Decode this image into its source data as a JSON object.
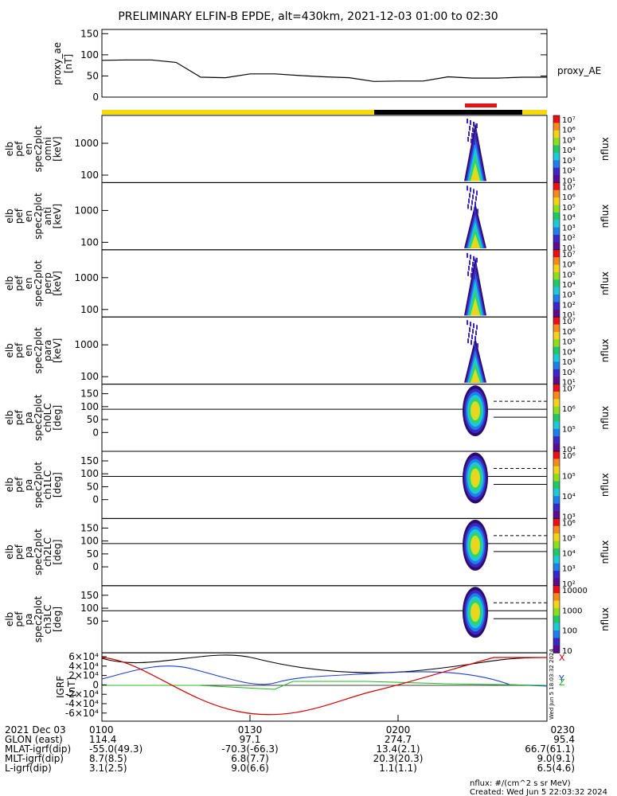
{
  "title": "PRELIMINARY ELFIN-B EPDE, alt=430km, 2021-12-03 01:00 to 02:30",
  "top_panel": {
    "ylabel_lines": [
      "proxy_ae",
      "[nT]"
    ],
    "series_label": "proxy_AE",
    "yticks": [
      "150",
      "100",
      "50",
      "0"
    ]
  },
  "status_bar": {
    "colors": {
      "yellow": "#f5d90a",
      "black": "#000000",
      "red": "#e8111a"
    }
  },
  "panels": [
    {
      "ylabel_lines": [
        "elb",
        "pef",
        "en",
        "spec2plot",
        "omni",
        "[keV]"
      ],
      "yticks": [
        "1000",
        "100"
      ],
      "cbar_labels": [
        "10^7",
        "10^6",
        "10^5",
        "10^4",
        "10^3",
        "10^2",
        "10^1"
      ],
      "cbar_title": "nflux"
    },
    {
      "ylabel_lines": [
        "elb",
        "pef",
        "en",
        "spec2plot",
        "anti",
        "[keV]"
      ],
      "yticks": [
        "1000",
        "100"
      ],
      "cbar_labels": [
        "10^7",
        "10^6",
        "10^5",
        "10^4",
        "10^3",
        "10^2",
        "10^1"
      ],
      "cbar_title": "nflux"
    },
    {
      "ylabel_lines": [
        "elb",
        "pef",
        "en",
        "spec2plot",
        "perp",
        "[keV]"
      ],
      "yticks": [
        "1000",
        "100"
      ],
      "cbar_labels": [
        "10^7",
        "10^6",
        "10^5",
        "10^4",
        "10^3",
        "10^2",
        "10^1"
      ],
      "cbar_title": "nflux"
    },
    {
      "ylabel_lines": [
        "elb",
        "pef",
        "en",
        "spec2plot",
        "para",
        "[keV]"
      ],
      "yticks": [
        "1000",
        "100"
      ],
      "cbar_labels": [
        "10^7",
        "10^6",
        "10^5",
        "10^4",
        "10^3",
        "10^2",
        "10^1"
      ],
      "cbar_title": "nflux"
    },
    {
      "ylabel_lines": [
        "elb",
        "pef",
        "pa",
        "spec2plot",
        "ch0LC",
        "[deg]"
      ],
      "yticks": [
        "150",
        "100",
        "50",
        "0"
      ],
      "cbar_labels": [
        "10^7",
        "10^6",
        "10^5",
        "10^4"
      ],
      "cbar_title": "nflux"
    },
    {
      "ylabel_lines": [
        "elb",
        "pef",
        "pa",
        "spec2plot",
        "ch1LC",
        "[deg]"
      ],
      "yticks": [
        "150",
        "100",
        "50",
        "0"
      ],
      "cbar_labels": [
        "10^6",
        "10^5",
        "10^4",
        "10^3"
      ],
      "cbar_title": "nflux"
    },
    {
      "ylabel_lines": [
        "elb",
        "pef",
        "pa",
        "spec2plot",
        "ch2LC",
        "[deg]"
      ],
      "yticks": [
        "150",
        "100",
        "50",
        "0"
      ],
      "cbar_labels": [
        "10^6",
        "10^5",
        "10^4",
        "10^3",
        "10^2"
      ],
      "cbar_title": "nflux"
    },
    {
      "ylabel_lines": [
        "elb",
        "pef",
        "pa",
        "spec2plot",
        "ch3LC",
        "[deg]"
      ],
      "yticks": [
        "150",
        "100",
        "50"
      ],
      "cbar_labels": [
        "10000",
        "1000",
        "100",
        "10"
      ],
      "cbar_title": "nflux"
    }
  ],
  "igrf_panel": {
    "ylabel_lines": [
      "IGRF",
      "[nT]"
    ],
    "yticks": [
      "6×10^4",
      "4×10^4",
      "2×10^4",
      "0",
      "-2×10^4",
      "-4×10^4",
      "-6×10^4"
    ],
    "side_text": "Wed Jun  5 18:03:32 2024",
    "legend": [
      "X",
      "Y",
      "Z"
    ],
    "colors": {
      "x": "#d40000",
      "y": "#1a3ccc",
      "z": "#22bb22",
      "total": "#000000"
    }
  },
  "info_rows": [
    {
      "label": "2021 Dec 03",
      "values": [
        "0100",
        "0130",
        "0200",
        "0230"
      ]
    },
    {
      "label": "GLON (east)",
      "values": [
        "114.4",
        "97.1",
        "274.7",
        "95.4"
      ]
    },
    {
      "label": "MLAT-igrf(dip)",
      "values": [
        "-55.0(49.3)",
        "-70.3(-66.3)",
        "13.4(2.1)",
        "66.7(61.1)"
      ]
    },
    {
      "label": "MLT-igrf(dip)",
      "values": [
        "8.7(8.5)",
        "6.8(7.7)",
        "20.3(20.3)",
        "9.0(9.1)"
      ]
    },
    {
      "label": "L-igrf(dip)",
      "values": [
        "3.1(2.5)",
        "9.0(6.6)",
        "1.1(1.1)",
        "6.5(4.6)"
      ]
    }
  ],
  "footer": {
    "units": "nflux: #/(cm^2 s sr MeV)",
    "created": "Created: Wed Jun  5 22:03:32 2024"
  },
  "chart_data": {
    "type": "line",
    "title": "PRELIMINARY ELFIN-B EPDE, alt=430km, 2021-12-03 01:00 to 02:30",
    "x_ticks": [
      "0100",
      "0130",
      "0200",
      "0230"
    ],
    "x": [
      "01:00",
      "01:05",
      "01:10",
      "01:15",
      "01:20",
      "01:25",
      "01:30",
      "01:35",
      "01:40",
      "01:45",
      "01:50",
      "01:55",
      "02:00",
      "02:05",
      "02:10",
      "02:15",
      "02:20",
      "02:25",
      "02:30"
    ],
    "series": [
      {
        "name": "proxy_AE",
        "values": [
          87,
          88,
          88,
          82,
          47,
          46,
          55,
          55,
          51,
          48,
          46,
          37,
          38,
          38,
          48,
          45,
          45,
          47,
          47
        ]
      }
    ],
    "ylim": [
      0,
      160
    ]
  }
}
